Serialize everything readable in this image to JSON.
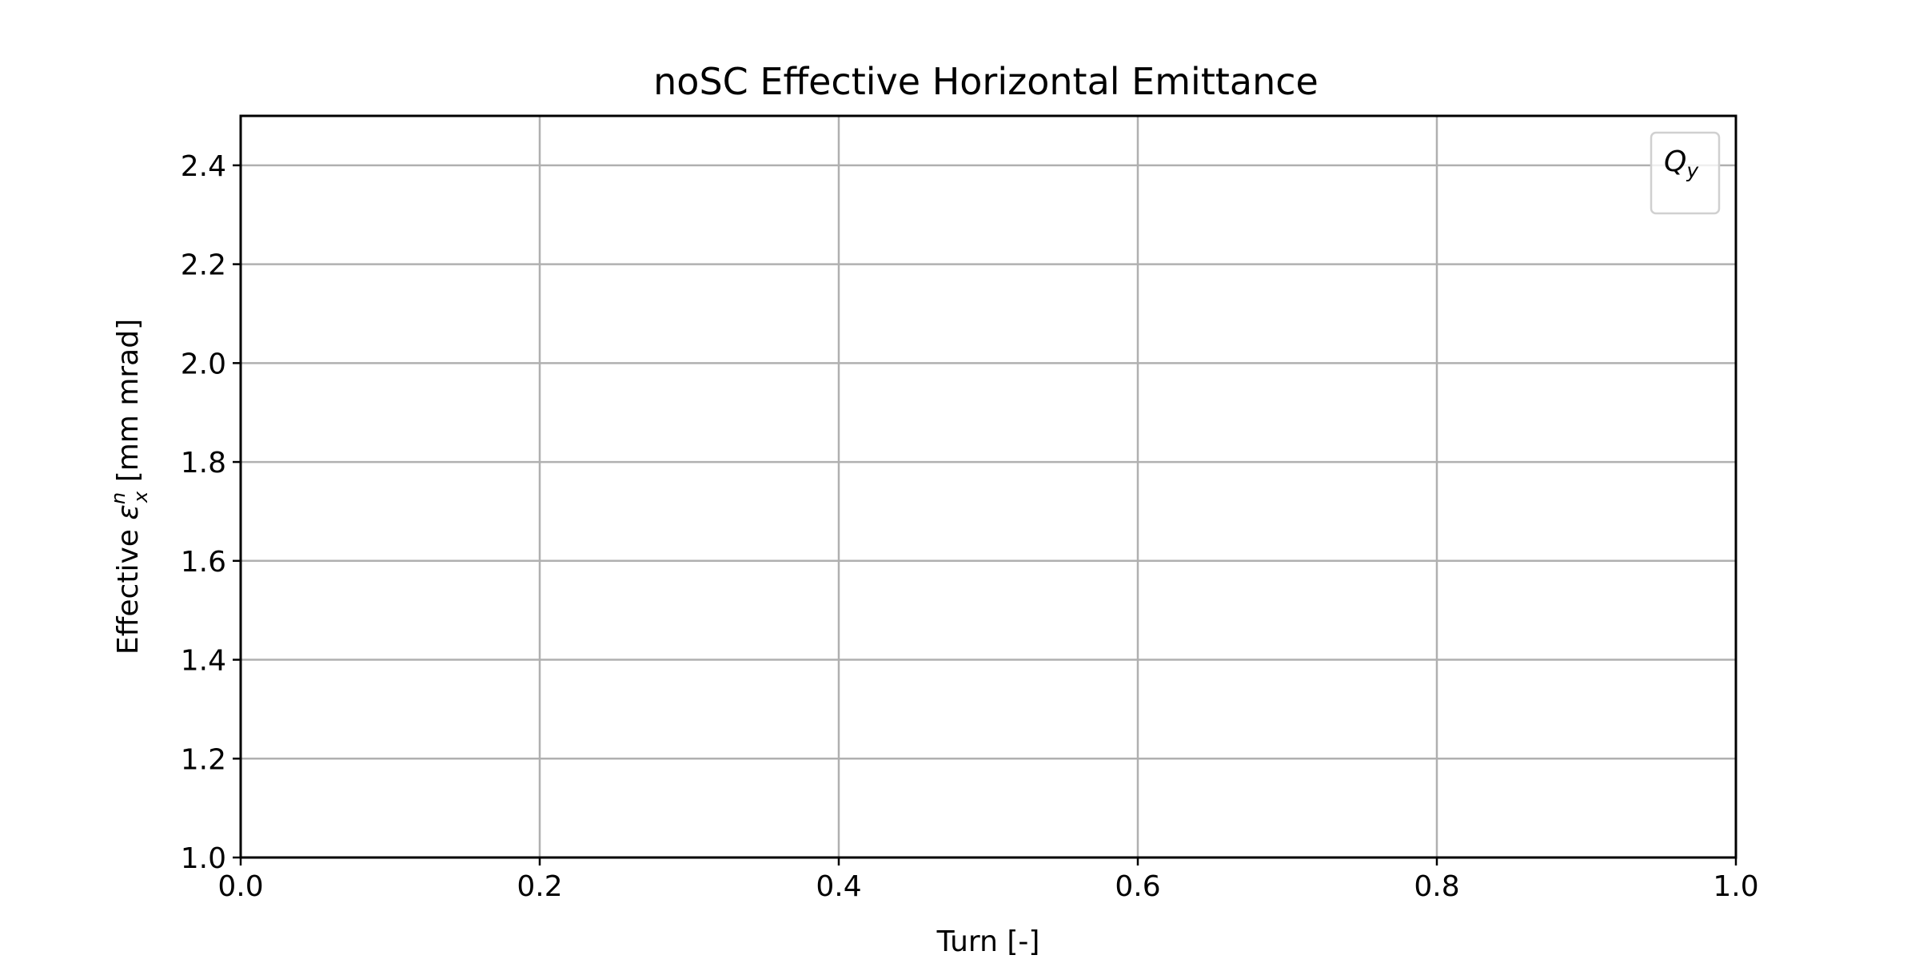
{
  "chart_data": {
    "type": "line",
    "title": "noSC Effective Horizontal Emittance",
    "xlabel": "Turn [-]",
    "ylabel": {
      "prefix": "Effective ",
      "symbol": "ε",
      "superscript": "n",
      "subscript": "x",
      "suffix": " [mm mrad]"
    },
    "xlim": [
      0.0,
      1.0
    ],
    "ylim": [
      1.0,
      2.5
    ],
    "xticks": [
      "0.0",
      "0.2",
      "0.4",
      "0.6",
      "0.8",
      "1.0"
    ],
    "yticks": [
      "1.0",
      "1.2",
      "1.4",
      "1.6",
      "1.8",
      "2.0",
      "2.2",
      "2.4"
    ],
    "grid": true,
    "legend": {
      "placement": "top-right",
      "title": {
        "base": "Q",
        "subscript": "y"
      },
      "entries": []
    },
    "series": [],
    "colors": {
      "grid": "#b0b0b0",
      "axes": "#000000",
      "legend_border": "#d0d0d0"
    }
  }
}
